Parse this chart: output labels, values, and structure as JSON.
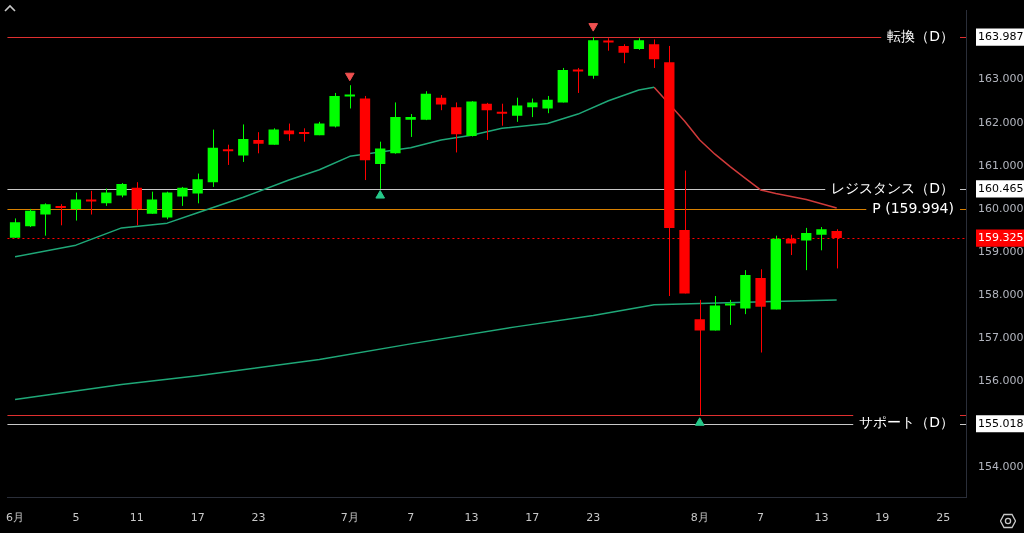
{
  "chart_data": {
    "type": "candlestick",
    "categories": [
      "6月",
      null,
      null,
      null,
      "5",
      null,
      null,
      null,
      "11",
      null,
      null,
      null,
      "17",
      null,
      null,
      null,
      "23",
      null,
      null,
      null,
      null,
      null,
      "7月",
      null,
      null,
      null,
      "7",
      null,
      null,
      null,
      "13",
      null,
      null,
      null,
      "17",
      null,
      null,
      null,
      "23",
      null,
      null,
      null,
      null,
      null,
      null,
      "8月",
      null,
      null,
      null,
      "7",
      null,
      null,
      null,
      "13",
      null,
      null,
      null,
      "19",
      null,
      null,
      null,
      "25",
      null
    ],
    "ohlc": [
      [
        159.33,
        159.78,
        159.33,
        159.69
      ],
      [
        159.6,
        160.0,
        159.58,
        159.96
      ],
      [
        159.87,
        160.13,
        159.38,
        160.11
      ],
      [
        160.04,
        160.11,
        159.62,
        160.02
      ],
      [
        160.0,
        160.38,
        159.73,
        160.22
      ],
      [
        160.19,
        160.42,
        159.87,
        160.17
      ],
      [
        160.13,
        160.47,
        160.07,
        160.38
      ],
      [
        160.31,
        160.6,
        160.27,
        160.58
      ],
      [
        160.49,
        160.62,
        159.62,
        160.0
      ],
      [
        159.89,
        160.4,
        159.89,
        160.22
      ],
      [
        159.8,
        160.4,
        159.76,
        160.38
      ],
      [
        160.29,
        160.51,
        160.07,
        160.49
      ],
      [
        160.36,
        160.82,
        160.13,
        160.69
      ],
      [
        160.62,
        161.84,
        160.51,
        161.42
      ],
      [
        161.37,
        161.49,
        161.02,
        161.34
      ],
      [
        161.24,
        161.96,
        161.09,
        161.62
      ],
      [
        161.6,
        161.78,
        161.29,
        161.51
      ],
      [
        161.49,
        161.87,
        161.49,
        161.84
      ],
      [
        161.82,
        161.98,
        161.58,
        161.73
      ],
      [
        161.77,
        161.87,
        161.56,
        161.74
      ],
      [
        161.71,
        162.02,
        161.71,
        161.98
      ],
      [
        161.91,
        162.69,
        161.89,
        162.62
      ],
      [
        162.61,
        162.87,
        162.33,
        162.63
      ],
      [
        162.56,
        162.62,
        160.67,
        161.13
      ],
      [
        161.04,
        161.56,
        160.465,
        161.4
      ],
      [
        161.29,
        162.47,
        161.28,
        162.13
      ],
      [
        162.07,
        162.2,
        161.67,
        162.13
      ],
      [
        162.07,
        162.73,
        162.06,
        162.67
      ],
      [
        162.58,
        162.64,
        162.29,
        162.42
      ],
      [
        162.36,
        162.47,
        161.31,
        161.73
      ],
      [
        161.69,
        162.5,
        161.68,
        162.49
      ],
      [
        162.44,
        162.46,
        161.6,
        162.29
      ],
      [
        162.23,
        162.44,
        161.93,
        162.21
      ],
      [
        162.16,
        162.58,
        162.02,
        162.4
      ],
      [
        162.36,
        162.56,
        162.13,
        162.47
      ],
      [
        162.33,
        162.62,
        162.22,
        162.53
      ],
      [
        162.47,
        163.27,
        162.47,
        163.22
      ],
      [
        163.21,
        163.27,
        162.69,
        163.19
      ],
      [
        163.09,
        163.987,
        163.02,
        163.91
      ],
      [
        163.88,
        163.96,
        163.67,
        163.86
      ],
      [
        163.78,
        163.82,
        163.38,
        163.62
      ],
      [
        163.71,
        163.96,
        163.69,
        163.91
      ],
      [
        163.82,
        163.93,
        163.27,
        163.47
      ],
      [
        163.4,
        163.78,
        157.98,
        159.56
      ],
      [
        159.51,
        160.89,
        158.04,
        158.04
      ],
      [
        157.44,
        157.89,
        155.22,
        157.18
      ],
      [
        157.18,
        157.98,
        157.18,
        157.76
      ],
      [
        157.76,
        157.89,
        157.31,
        157.8
      ],
      [
        157.69,
        158.58,
        157.56,
        158.47
      ],
      [
        158.4,
        158.6,
        156.67,
        157.73
      ],
      [
        157.67,
        159.38,
        157.67,
        159.31
      ],
      [
        159.31,
        159.4,
        158.93,
        159.2
      ],
      [
        159.27,
        159.56,
        158.58,
        159.44
      ],
      [
        159.4,
        159.58,
        159.04,
        159.53
      ],
      [
        159.49,
        159.53,
        158.62,
        159.325
      ],
      null,
      null,
      null,
      null,
      null,
      null,
      null,
      null
    ],
    "colors": [
      "#00ff00",
      "#00ff00",
      "#00ff00",
      "#ff0000",
      "#00ff00",
      "#ff0000",
      "#00ff00",
      "#00ff00",
      "#ff0000",
      "#00ff00",
      "#00ff00",
      "#00ff00",
      "#00ff00",
      "#00ff00",
      "#ff0000",
      "#00ff00",
      "#ff0000",
      "#00ff00",
      "#ff0000",
      "#ff0000",
      "#00ff00",
      "#00ff00",
      "#00ff00",
      "#ff0000",
      "#00ff00",
      "#00ff00",
      "#00ff00",
      "#00ff00",
      "#ff0000",
      "#ff0000",
      "#00ff00",
      "#ff0000",
      "#ff0000",
      "#00ff00",
      "#00ff00",
      "#00ff00",
      "#00ff00",
      "#ff0000",
      "#00ff00",
      "#ff0000",
      "#ff0000",
      "#00ff00",
      "#ff0000",
      "#ff0000",
      "#ff0000",
      "#ff0000",
      "#00ff00",
      "#00ff00",
      "#00ff00",
      "#ff0000",
      "#00ff00",
      "#ff0000",
      "#00ff00",
      "#00ff00",
      "#ff0000",
      null,
      null,
      null,
      null,
      null,
      null,
      null,
      null
    ],
    "series": [
      {
        "type": "line",
        "color": "#1fa878",
        "values": [
          158.89,
          null,
          null,
          null,
          159.16,
          null,
          null,
          159.56,
          null,
          null,
          159.67,
          null,
          159.91,
          null,
          null,
          160.27,
          null,
          null,
          160.67,
          null,
          160.91,
          null,
          161.22,
          null,
          null,
          null,
          161.42,
          null,
          161.6,
          null,
          161.71,
          null,
          161.87,
          null,
          null,
          161.98,
          null,
          162.2,
          null,
          162.51,
          null,
          162.76,
          162.82,
          null,
          null,
          null,
          null,
          null,
          null,
          null,
          null,
          null,
          null,
          null,
          null,
          null,
          null,
          null,
          null,
          null,
          null,
          null,
          null
        ]
      },
      {
        "type": "line",
        "color": "#d03a3a",
        "values": [
          null,
          null,
          null,
          null,
          null,
          null,
          null,
          null,
          null,
          null,
          null,
          null,
          null,
          null,
          null,
          null,
          null,
          null,
          null,
          null,
          null,
          null,
          null,
          null,
          null,
          null,
          null,
          null,
          null,
          null,
          null,
          null,
          null,
          null,
          null,
          null,
          null,
          null,
          null,
          null,
          null,
          null,
          162.82,
          null,
          162.04,
          161.6,
          161.27,
          160.98,
          160.71,
          160.44,
          160.36,
          null,
          160.22,
          null,
          160.02,
          null,
          null,
          null,
          null,
          null,
          null,
          null,
          null
        ]
      },
      {
        "type": "line",
        "color": "#1fa878",
        "values": [
          155.58,
          null,
          null,
          null,
          null,
          null,
          null,
          155.93,
          null,
          null,
          null,
          null,
          156.13,
          null,
          null,
          null,
          null,
          null,
          null,
          null,
          156.51,
          null,
          null,
          null,
          null,
          null,
          156.87,
          null,
          null,
          null,
          null,
          null,
          null,
          157.27,
          null,
          null,
          null,
          null,
          157.53,
          null,
          null,
          null,
          157.78,
          null,
          null,
          null,
          null,
          null,
          null,
          null,
          null,
          null,
          null,
          null,
          157.89,
          null,
          null,
          null,
          null,
          null,
          null,
          null,
          null
        ]
      },
      {
        "type": "scatter",
        "marker": "triangle-down",
        "color": "#f05050",
        "values": [
          null,
          null,
          null,
          null,
          null,
          null,
          null,
          null,
          null,
          null,
          null,
          null,
          null,
          null,
          null,
          null,
          null,
          null,
          null,
          null,
          null,
          null,
          163.09,
          null,
          null,
          null,
          null,
          null,
          null,
          null,
          null,
          null,
          null,
          null,
          null,
          null,
          null,
          null,
          164.24,
          null,
          null,
          null,
          null,
          null,
          null,
          null,
          null,
          null,
          null,
          null,
          null,
          null,
          null,
          null,
          null,
          null,
          null,
          null,
          null,
          null,
          null,
          null,
          null
        ]
      },
      {
        "type": "scatter",
        "marker": "triangle",
        "color": "#26c98a",
        "values": [
          null,
          null,
          null,
          null,
          null,
          null,
          null,
          null,
          null,
          null,
          null,
          null,
          null,
          null,
          null,
          null,
          null,
          null,
          null,
          null,
          null,
          null,
          null,
          null,
          160.31,
          null,
          null,
          null,
          null,
          null,
          null,
          null,
          null,
          null,
          null,
          null,
          null,
          null,
          null,
          null,
          null,
          null,
          null,
          null,
          null,
          155.04,
          null,
          null,
          null,
          null,
          null,
          null,
          null,
          null,
          null,
          null,
          null,
          null,
          null,
          null,
          null,
          null,
          null
        ]
      }
    ],
    "ylim": [
      153.3,
      164.6
    ],
    "yticks": [
      {
        "value": 154,
        "label": "154.000"
      },
      {
        "value": 155.018,
        "label": "155.018"
      },
      {
        "value": 156,
        "label": "156.000"
      },
      {
        "value": 157,
        "label": "157.000"
      },
      {
        "value": 158,
        "label": "158.000"
      },
      {
        "value": 159,
        "label": "159.000"
      },
      {
        "value": 159.325,
        "label": "159.325"
      },
      {
        "value": 160,
        "label": "160.000"
      },
      {
        "value": 160.465,
        "label": "160.465"
      },
      {
        "value": 161,
        "label": "161.000"
      },
      {
        "value": 162,
        "label": "162.000"
      },
      {
        "value": 163,
        "label": "163.000"
      },
      {
        "value": 163.987,
        "label": "163.987"
      }
    ],
    "ref_lines": [
      {
        "axis": "y",
        "value": 163.987,
        "label": "転換（D）",
        "color": "#e03030",
        "line_style": "solid"
      },
      {
        "axis": "y",
        "value": 160.465,
        "label": "レジスタンス（D）",
        "color": "#c8c8c8",
        "line_style": "solid"
      },
      {
        "axis": "y",
        "value": 159.994,
        "label": "P (159.994)",
        "color": "#d98000",
        "line_style": "solid"
      },
      {
        "axis": "y",
        "value": 159.325,
        "label": null,
        "color": "#ff0000",
        "line_style": "dotted"
      },
      {
        "axis": "y",
        "value": 155.22,
        "label": null,
        "color": "#e03030",
        "line_style": "solid"
      },
      {
        "axis": "y",
        "value": 155.018,
        "label": "サポート（D）",
        "color": "#c8c8c8",
        "line_style": "solid"
      }
    ],
    "grid": false,
    "legend": false
  }
}
